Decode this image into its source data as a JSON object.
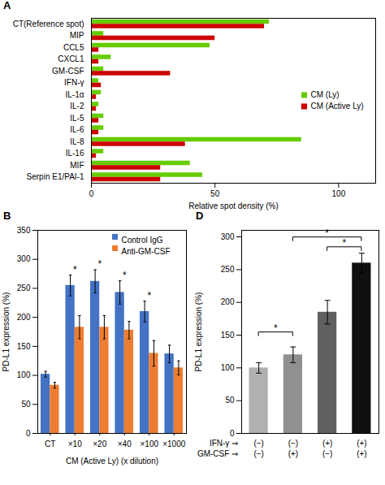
{
  "chart_data": [
    {
      "type": "bar",
      "title": "A",
      "orientation": "horizontal",
      "categories": [
        "Serpin E1/PAI-1",
        "MIF",
        "IL-16",
        "IL-8",
        "IL-6",
        "IL-5",
        "IL-2",
        "IL-1α",
        "IFN-γ",
        "GM-CSF",
        "CXCL1",
        "CCL5",
        "MIP",
        "CT(Reference spot)"
      ],
      "series": [
        {
          "name": "CM (Ly)",
          "color": "#66cc00",
          "values": [
            45,
            40,
            5,
            85,
            5,
            5,
            3,
            4,
            3,
            5,
            8,
            48,
            5,
            72
          ]
        },
        {
          "name": "CM (Active Ly)",
          "color": "#cc0000",
          "values": [
            28,
            28,
            2,
            38,
            3,
            3,
            2,
            2,
            4,
            32,
            3,
            3,
            50,
            70
          ]
        }
      ],
      "xlabel": "Relative spot density (%)",
      "xlim": [
        0,
        115
      ],
      "xticks": [
        0,
        50,
        100
      ],
      "legend": "center right"
    },
    {
      "type": "bar",
      "title": "B",
      "categories": [
        "CT",
        "×10",
        "×20",
        "×40",
        "×100",
        "×1000"
      ],
      "series": [
        {
          "name": "Control IgG",
          "color": "#4472c4",
          "values": [
            102,
            255,
            262,
            243,
            210,
            137
          ],
          "errors": [
            5,
            18,
            20,
            20,
            18,
            15
          ]
        },
        {
          "name": "Anti-GM-CSF",
          "color": "#ed7d31",
          "values": [
            83,
            183,
            183,
            178,
            138,
            113
          ],
          "errors": [
            5,
            20,
            20,
            15,
            22,
            12
          ]
        }
      ],
      "xlabel": "CM (Active Ly) (x dilution)",
      "ylabel": "PD-L1 expression (%)",
      "ylim": [
        0,
        350
      ],
      "yticks": [
        0,
        50,
        100,
        150,
        200,
        250,
        300,
        350
      ],
      "legend": "upper right",
      "annotations": [
        {
          "text": "*",
          "category": "×10"
        },
        {
          "text": "*",
          "category": "×20"
        },
        {
          "text": "*",
          "category": "×40"
        },
        {
          "text": "*",
          "category": "×100"
        }
      ]
    },
    {
      "type": "bar",
      "title": "D",
      "categories": [
        null,
        null,
        null,
        null
      ],
      "values": [
        100,
        120,
        185,
        260
      ],
      "errors": [
        8,
        12,
        18,
        15
      ],
      "colors": [
        "#b0b0b0",
        "#909090",
        "#606060",
        "#101010"
      ],
      "ylabel": "PD-L1 expression (%)",
      "ylim": [
        0,
        310
      ],
      "yticks": [
        0,
        50,
        100,
        150,
        200,
        250,
        300
      ],
      "tick_labels": "y",
      "factors": [
        {
          "name": "IFN-γ ⇒",
          "levels": [
            "(−)",
            "(−)",
            "(+)",
            "(+)"
          ]
        },
        {
          "name": "GM-CSF ⇒",
          "levels": [
            "(−)",
            "(+)",
            "(−)",
            "(+)"
          ]
        }
      ],
      "brackets": [
        {
          "from": 0,
          "to": 1,
          "y": 148,
          "text": "*"
        },
        {
          "from": 2,
          "to": 3,
          "y": 278,
          "text": "*"
        },
        {
          "from": 1,
          "to": 3,
          "y": 293,
          "text": "*"
        }
      ]
    }
  ]
}
